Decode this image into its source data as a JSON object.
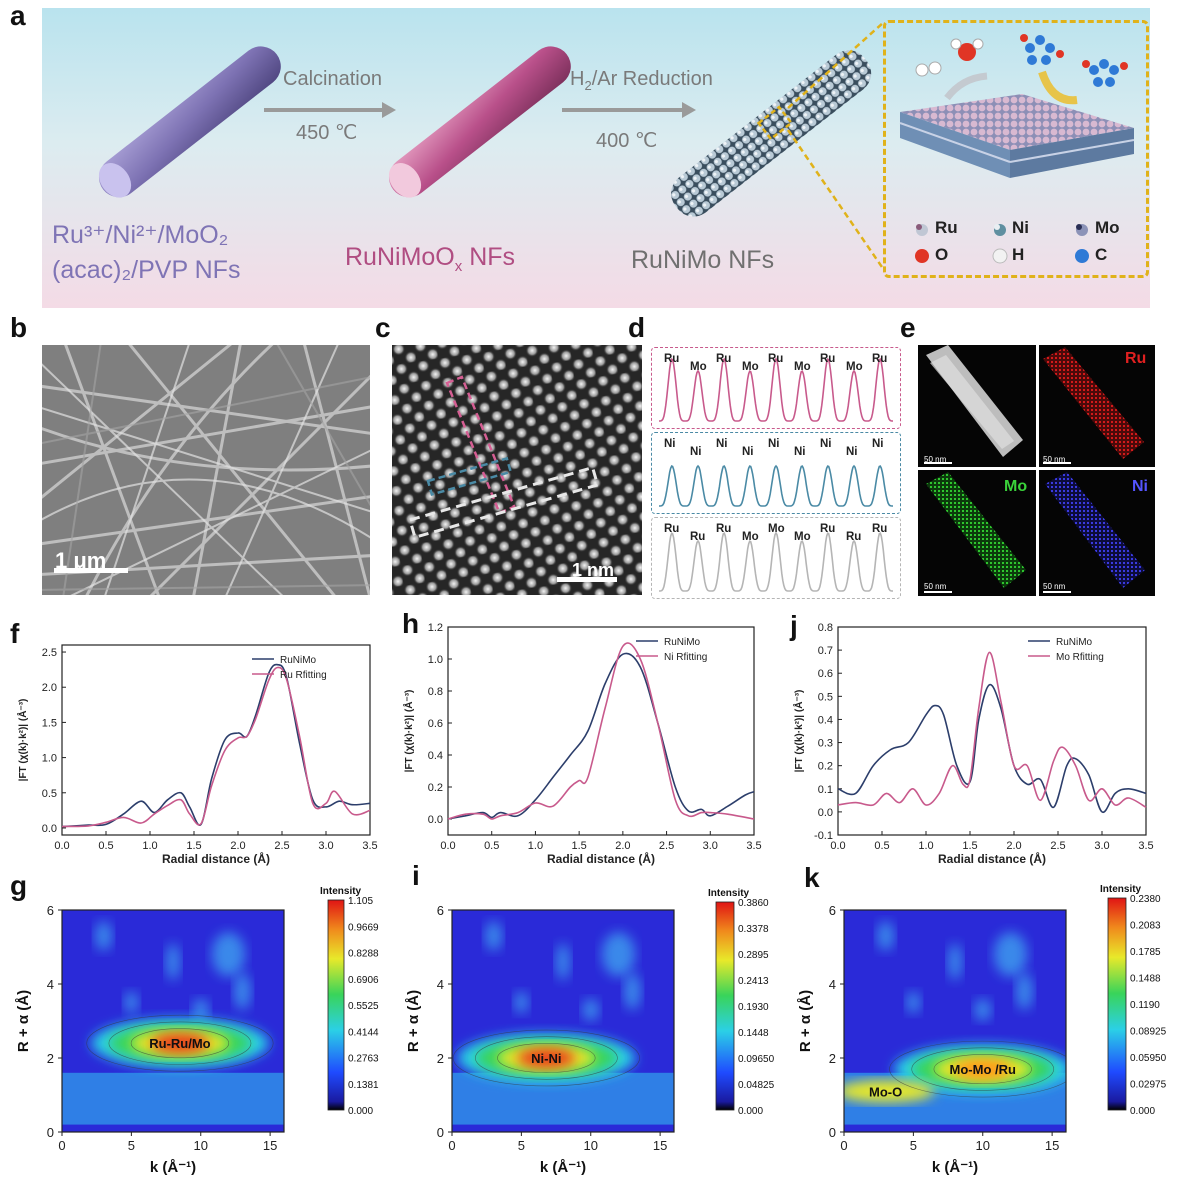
{
  "panels": {
    "a": "a",
    "b": "b",
    "c": "c",
    "d": "d",
    "e": "e",
    "f": "f",
    "g": "g",
    "h": "h",
    "i": "i",
    "j": "j",
    "k": "k"
  },
  "scheme": {
    "step1_top": "Calcination",
    "step1_bottom": "450 ℃",
    "step2_top_prefix": "H",
    "step2_top_sub": "2",
    "step2_top_suffix": "/Ar Reduction",
    "step2_bottom": "400 ℃",
    "precursor_line1": "Ru³⁺/Ni²⁺/MoO₂",
    "precursor_line2": "(acac)₂/PVP NFs",
    "oxide_prefix": "RuNiMoO",
    "oxide_sub": "x",
    "oxide_suffix": " NFs",
    "product": "RuNiMo NFs",
    "legend": [
      "Ru",
      "Ni",
      "Mo",
      "O",
      "H",
      "C"
    ],
    "colors": {
      "precursor": "#7f74b5",
      "oxide": "#b04d82",
      "zoom_border": "#e0b21a"
    }
  },
  "microscopy": {
    "b_scale": "1 μm",
    "c_scale": "1 nm",
    "e_labels": {
      "ru": "Ru",
      "mo": "Mo",
      "ni": "Ni"
    },
    "e_scales": [
      "50 nm",
      "50 nm",
      "50 nm",
      "50 nm"
    ]
  },
  "line_profiles": {
    "top": [
      "Ru",
      "Mo",
      "Ru",
      "Mo",
      "Ru",
      "Mo",
      "Ru",
      "Mo",
      "Ru"
    ],
    "middle": [
      "Ni",
      "Ni",
      "Ni",
      "Ni",
      "Ni",
      "Ni",
      "Ni",
      "Ni",
      "Ni"
    ],
    "bottom": [
      "Ru",
      "Ru",
      "Ru",
      "Mo",
      "Mo",
      "Mo",
      "Ru",
      "Ru",
      "Ru"
    ],
    "colors": {
      "top": "#c85a8c",
      "middle": "#4a8aa5",
      "bottom": "#b5b5b5"
    }
  },
  "chart_data": [
    {
      "type": "line",
      "panel": "f",
      "xlabel": "Radial distance (Å)",
      "ylabel": "|FT (χ(k)·k²)| (Å⁻³)",
      "xlim": [
        0,
        3.5
      ],
      "ylim": [
        -0.1,
        2.6
      ],
      "xticks": [
        "0.0",
        "0.5",
        "1.0",
        "1.5",
        "2.0",
        "2.5",
        "3.0",
        "3.5"
      ],
      "yticks": [
        "0.0",
        "0.5",
        "1.0",
        "1.5",
        "2.0",
        "2.5"
      ],
      "legend_position": "top-right",
      "series": [
        {
          "name": "RuNiMo",
          "color": "#2c3e6b",
          "x": [
            0,
            0.3,
            0.5,
            0.7,
            0.9,
            1.05,
            1.2,
            1.35,
            1.45,
            1.58,
            1.7,
            1.85,
            2.0,
            2.1,
            2.2,
            2.35,
            2.45,
            2.55,
            2.7,
            2.85,
            3.0,
            3.15,
            3.3,
            3.5
          ],
          "y": [
            0.02,
            0.04,
            0.05,
            0.2,
            0.38,
            0.22,
            0.4,
            0.5,
            0.3,
            0.05,
            0.7,
            1.25,
            1.35,
            1.3,
            1.6,
            2.2,
            2.32,
            2.15,
            1.2,
            0.4,
            0.3,
            0.38,
            0.33,
            0.35
          ]
        },
        {
          "name": "Ru Rfitting",
          "color": "#c85a8c",
          "x": [
            0,
            0.3,
            0.5,
            0.7,
            0.9,
            1.05,
            1.2,
            1.35,
            1.45,
            1.58,
            1.7,
            1.85,
            2.0,
            2.1,
            2.2,
            2.35,
            2.45,
            2.55,
            2.7,
            2.85,
            3.0,
            3.1,
            3.3,
            3.5
          ],
          "y": [
            0.02,
            0.03,
            0.08,
            0.15,
            0.07,
            0.2,
            0.32,
            0.4,
            0.2,
            0.06,
            0.6,
            1.1,
            1.28,
            1.3,
            1.55,
            2.1,
            2.28,
            2.12,
            1.3,
            0.35,
            0.35,
            0.52,
            0.2,
            0.25
          ]
        }
      ]
    },
    {
      "type": "line",
      "panel": "h",
      "xlabel": "Radial distance (Å)",
      "ylabel": "|FT (χ(k)·k²)| (Å⁻³)",
      "xlim": [
        0,
        3.5
      ],
      "ylim": [
        -0.1,
        1.2
      ],
      "xticks": [
        "0.0",
        "0.5",
        "1.0",
        "1.5",
        "2.0",
        "2.5",
        "3.0",
        "3.5"
      ],
      "yticks": [
        "0.0",
        "0.2",
        "0.4",
        "0.6",
        "0.8",
        "1.0",
        "1.2"
      ],
      "legend_position": "top-right",
      "series": [
        {
          "name": "RuNiMo",
          "color": "#2c3e6b",
          "x": [
            0,
            0.2,
            0.4,
            0.5,
            0.6,
            0.8,
            1.0,
            1.2,
            1.4,
            1.6,
            1.8,
            2.0,
            2.2,
            2.4,
            2.6,
            2.75,
            2.9,
            3.0,
            3.2,
            3.4,
            3.5
          ],
          "y": [
            0.0,
            0.02,
            0.04,
            0.01,
            0.04,
            0.02,
            0.12,
            0.26,
            0.4,
            0.55,
            0.85,
            1.03,
            0.95,
            0.6,
            0.2,
            0.05,
            0.06,
            0.02,
            0.08,
            0.15,
            0.17
          ]
        },
        {
          "name": "Ni Rfitting",
          "color": "#c85a8c",
          "x": [
            0,
            0.2,
            0.4,
            0.5,
            0.6,
            0.8,
            1.0,
            1.2,
            1.4,
            1.5,
            1.6,
            1.8,
            2.0,
            2.2,
            2.4,
            2.6,
            2.75,
            2.9,
            3.0,
            3.2,
            3.5
          ],
          "y": [
            0.0,
            0.03,
            0.03,
            0.0,
            0.02,
            0.04,
            0.1,
            0.08,
            0.2,
            0.24,
            0.26,
            0.7,
            1.08,
            1.0,
            0.6,
            0.12,
            0.02,
            0.04,
            0.04,
            0.03,
            0.0
          ]
        }
      ]
    },
    {
      "type": "line",
      "panel": "j",
      "xlabel": "Radial distance (Å)",
      "ylabel": "|FT (χ(k)·k²)| (Å⁻³)",
      "xlim": [
        0,
        3.5
      ],
      "ylim": [
        -0.1,
        0.8
      ],
      "xticks": [
        "0.0",
        "0.5",
        "1.0",
        "1.5",
        "2.0",
        "2.5",
        "3.0",
        "3.5"
      ],
      "yticks": [
        "-0.1",
        "0.0",
        "0.1",
        "0.2",
        "0.3",
        "0.4",
        "0.5",
        "0.6",
        "0.7",
        "0.8"
      ],
      "legend_position": "top-right",
      "series": [
        {
          "name": "RuNiMo",
          "color": "#2c3e6b",
          "x": [
            0,
            0.2,
            0.4,
            0.6,
            0.8,
            1.0,
            1.1,
            1.2,
            1.35,
            1.5,
            1.6,
            1.72,
            1.85,
            2.0,
            2.15,
            2.3,
            2.45,
            2.6,
            2.7,
            2.85,
            3.0,
            3.15,
            3.3,
            3.5
          ],
          "y": [
            0.1,
            0.08,
            0.2,
            0.27,
            0.3,
            0.42,
            0.46,
            0.42,
            0.2,
            0.13,
            0.4,
            0.55,
            0.45,
            0.2,
            0.12,
            0.14,
            0.02,
            0.2,
            0.23,
            0.16,
            0.0,
            0.08,
            0.1,
            0.08
          ]
        },
        {
          "name": "Mo Rfitting",
          "color": "#c85a8c",
          "x": [
            0,
            0.2,
            0.4,
            0.55,
            0.7,
            0.85,
            1.0,
            1.15,
            1.3,
            1.42,
            1.5,
            1.6,
            1.72,
            1.85,
            2.0,
            2.15,
            2.3,
            2.45,
            2.55,
            2.7,
            2.85,
            3.0,
            3.15,
            3.3,
            3.5
          ],
          "y": [
            0.03,
            0.04,
            0.03,
            0.08,
            0.04,
            0.1,
            0.03,
            0.08,
            0.2,
            0.12,
            0.14,
            0.45,
            0.69,
            0.48,
            0.2,
            0.2,
            0.05,
            0.22,
            0.28,
            0.2,
            0.05,
            0.1,
            0.03,
            0.06,
            0.02
          ]
        }
      ]
    },
    {
      "type": "heatmap",
      "panel": "g",
      "xlabel": "k (Å⁻¹)",
      "ylabel": "R + α (Å)",
      "xlim": [
        0,
        16
      ],
      "ylim": [
        0,
        6
      ],
      "xticks": [
        "0",
        "5",
        "10",
        "15"
      ],
      "yticks": [
        "0",
        "2",
        "4",
        "6"
      ],
      "colorbar_title": "Intensity",
      "colorbar_ticks": [
        "1.105",
        "0.9669",
        "0.8288",
        "0.6906",
        "0.5525",
        "0.4144",
        "0.2763",
        "0.1381",
        "0.000"
      ],
      "annotations": [
        {
          "text": "Ru-Ru/Mo",
          "k": 8.5,
          "r": 2.4
        }
      ]
    },
    {
      "type": "heatmap",
      "panel": "i",
      "xlabel": "k (Å⁻¹)",
      "ylabel": "R + α (Å)",
      "xlim": [
        0,
        16
      ],
      "ylim": [
        0,
        6
      ],
      "xticks": [
        "0",
        "5",
        "10",
        "15"
      ],
      "yticks": [
        "0",
        "2",
        "4",
        "6"
      ],
      "colorbar_title": "Intensity",
      "colorbar_ticks": [
        "0.3860",
        "0.3378",
        "0.2895",
        "0.2413",
        "0.1930",
        "0.1448",
        "0.09650",
        "0.04825",
        "0.000"
      ],
      "annotations": [
        {
          "text": "Ni-Ni",
          "k": 6.8,
          "r": 2.0
        }
      ]
    },
    {
      "type": "heatmap",
      "panel": "k",
      "xlabel": "k (Å⁻¹)",
      "ylabel": "R + α (Å)",
      "xlim": [
        0,
        16
      ],
      "ylim": [
        0,
        6
      ],
      "xticks": [
        "0",
        "5",
        "10",
        "15"
      ],
      "yticks": [
        "0",
        "2",
        "4",
        "6"
      ],
      "colorbar_title": "Intensity",
      "colorbar_ticks": [
        "0.2380",
        "0.2083",
        "0.1785",
        "0.1488",
        "0.1190",
        "0.08925",
        "0.05950",
        "0.02975",
        "0.000"
      ],
      "annotations": [
        {
          "text": "Mo-Mo /Ru",
          "k": 10,
          "r": 1.7
        },
        {
          "text": "Mo-O",
          "k": 3,
          "r": 1.1
        }
      ]
    }
  ]
}
